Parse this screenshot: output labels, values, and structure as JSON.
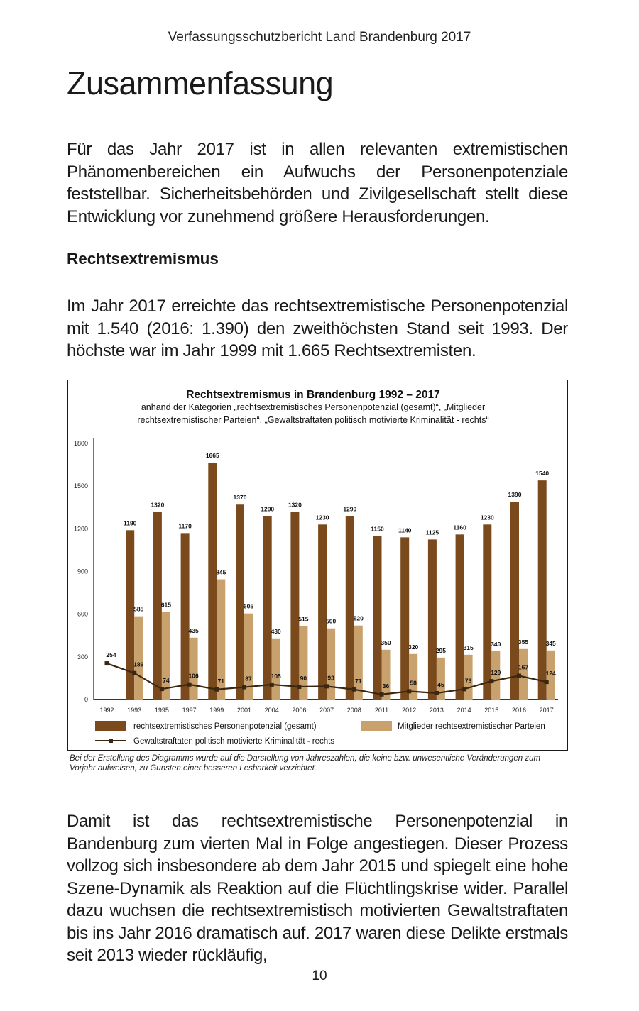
{
  "header": {
    "running_title": "Verfassungsschutzbericht Land Brandenburg 2017"
  },
  "page_title": "Zusammenfassung",
  "intro_paragraph": "Für das Jahr 2017 ist in allen relevanten extremistischen Phänomenbereichen ein Aufwuchs der Personenpotenziale feststellbar. Sicherheitsbehörden und Zivilgesellschaft stellt diese Entwicklung vor zunehmend größere Herausforderungen.",
  "section": {
    "heading": "Rechtsextremismus",
    "paragraph_1": "Im Jahr 2017 erreichte das rechtsextremistische Personenpotenzial mit 1.540 (2016: 1.390) den zweithöchsten Stand seit 1993. Der höchste war im Jahr 1999 mit 1.665 Rechtsextremisten.",
    "paragraph_2": "Damit ist das rechtsextremistische Personenpotenzial in Bandenburg zum vierten Mal in Folge angestiegen. Dieser Prozess vollzog sich insbesondere ab dem Jahr 2015 und spiegelt eine hohe Szene-Dynamik als Reaktion auf die Flüchtlingskrise wider. Parallel dazu wuchsen die rechtsextremistisch motivierten Gewaltstraftaten bis ins Jahr 2016 dramatisch auf. 2017 waren diese Delikte erstmals seit 2013 wieder rückläufig,"
  },
  "chart_caption": "Bei der Erstellung des Diagramms wurde auf die Darstellung von Jahreszahlen, die keine bzw. unwesentliche Veränderungen zum Vorjahr aufweisen, zu Gunsten einer besseren Lesbarkeit verzichtet.",
  "page_number": "10",
  "chart_data": {
    "type": "bar",
    "title": "Rechtsextremismus in Brandenburg 1992 – 2017",
    "subtitle_line1": "anhand der Kategorien „rechtsextremistisches Personenpotenzial (gesamt)“, „Mitglieder",
    "subtitle_line2": "rechtsextremistischer Parteien“, „Gewaltstraftaten politisch motivierte Kriminalität - rechts“",
    "categories": [
      "1992",
      "1993",
      "1995",
      "1997",
      "1999",
      "2001",
      "2004",
      "2006",
      "2007",
      "2008",
      "2011",
      "2012",
      "2013",
      "2014",
      "2015",
      "2016",
      "2017"
    ],
    "ylim": [
      0,
      1800
    ],
    "yticks": [
      "0",
      "300",
      "600",
      "900",
      "1200",
      "1500",
      "1800"
    ],
    "grid": false,
    "legend_position": "bottom",
    "colors": {
      "gesamt": "#7a4a1c",
      "parteien": "#c9a16c",
      "gewalt": "#3a2712",
      "axis": "#1a1a1a"
    },
    "series": [
      {
        "name": "rechtsextremistisches Personenpotenzial (gesamt)",
        "kind": "bar",
        "values": [
          null,
          1190,
          1320,
          1170,
          1665,
          1370,
          1290,
          1320,
          1230,
          1290,
          1150,
          1140,
          1125,
          1160,
          1230,
          1390,
          1540
        ]
      },
      {
        "name": "Mitglieder rechtsextremistischer Parteien",
        "kind": "bar",
        "values": [
          null,
          585,
          615,
          435,
          845,
          605,
          430,
          515,
          500,
          520,
          350,
          320,
          295,
          315,
          340,
          355,
          345
        ]
      },
      {
        "name": "Gewaltstraftaten politisch motivierte Kriminalität - rechts",
        "kind": "line",
        "values": [
          254,
          186,
          74,
          106,
          71,
          87,
          105,
          90,
          93,
          71,
          36,
          58,
          45,
          73,
          129,
          167,
          124
        ]
      }
    ]
  }
}
